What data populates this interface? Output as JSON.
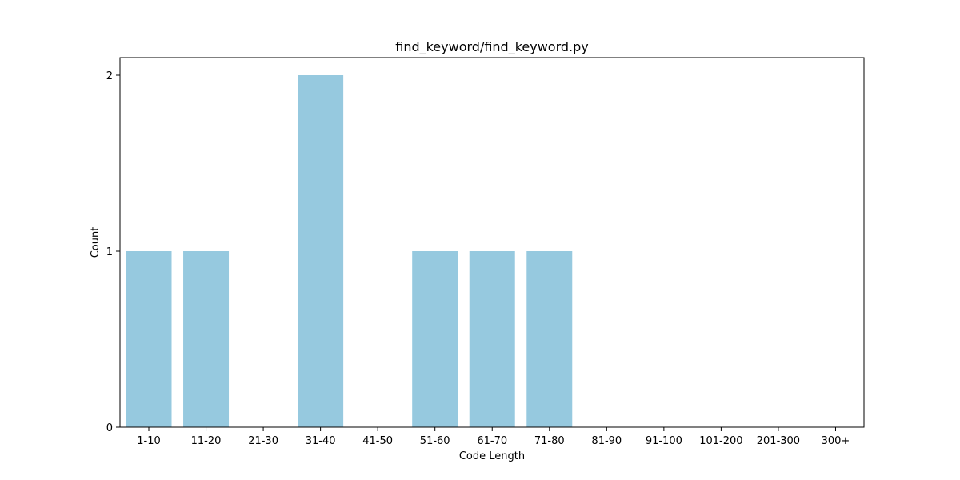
{
  "chart_data": {
    "type": "bar",
    "title": "find_keyword/find_keyword.py",
    "xlabel": "Code Length",
    "ylabel": "Count",
    "categories": [
      "1-10",
      "11-20",
      "21-30",
      "31-40",
      "41-50",
      "51-60",
      "61-70",
      "71-80",
      "81-90",
      "91-100",
      "101-200",
      "201-300",
      "300+"
    ],
    "values": [
      1,
      1,
      0,
      2,
      0,
      1,
      1,
      1,
      0,
      0,
      0,
      0,
      0
    ],
    "ylim": [
      0,
      2.1
    ],
    "yticks": [
      0,
      1,
      2
    ],
    "bar_color": "#96c9df",
    "grid": false,
    "legend": "none"
  }
}
